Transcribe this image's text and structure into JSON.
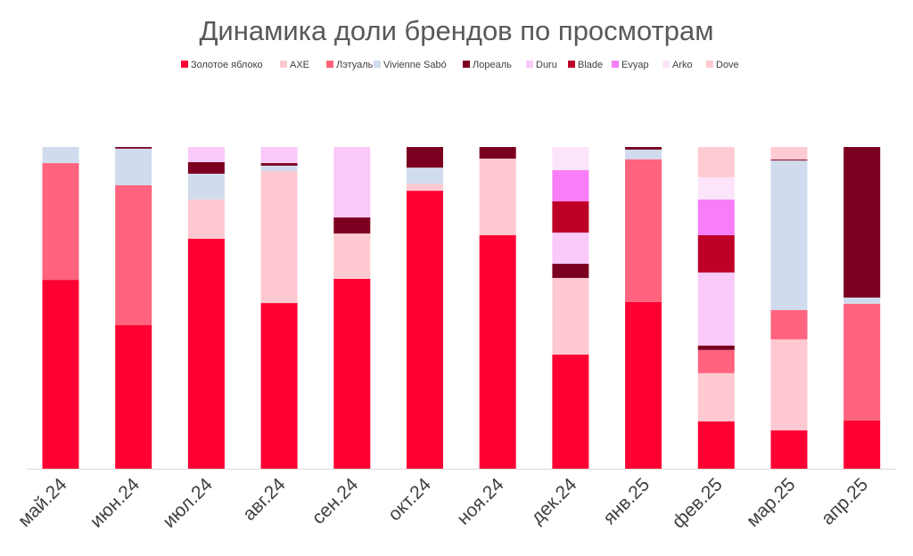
{
  "chart_data": {
    "type": "bar",
    "stacked": "percent",
    "title": "Динамика доли брендов по просмотрам",
    "legend_position": "top",
    "grid": false,
    "ylim": [
      0,
      100
    ],
    "categories": [
      "май.24",
      "июн.24",
      "июл.24",
      "авг.24",
      "сен.24",
      "окт.24",
      "ноя.24",
      "дек.24",
      "янв.25",
      "фев.25",
      "мар.25",
      "апр.25"
    ],
    "series": [
      {
        "name": "Золотое яблоко",
        "color": "#FF0033",
        "values": [
          58.7,
          44.6,
          71.5,
          51.5,
          59.0,
          86.4,
          72.6,
          35.5,
          51.8,
          14.7,
          11.9,
          15.0
        ]
      },
      {
        "name": "AXE",
        "color": "#FFC9D1",
        "values": [
          0,
          0,
          12.2,
          41.0,
          14.1,
          2.2,
          23.8,
          23.8,
          0,
          15.0,
          28.3,
          0
        ]
      },
      {
        "name": "Лэтуаль",
        "color": "#FF637D",
        "values": [
          36.3,
          43.5,
          0,
          0,
          0,
          0,
          0,
          0,
          44.3,
          7.2,
          9.1,
          36.3
        ]
      },
      {
        "name": "Vivienne Sabó",
        "color": "#D0DCEE",
        "values": [
          5.0,
          11.4,
          8.0,
          1.7,
          0,
          5.0,
          0,
          0,
          3.0,
          0,
          46.5,
          1.9
        ]
      },
      {
        "name": "Лореаль",
        "color": "#7B0020",
        "values": [
          0,
          0.5,
          3.6,
          0.8,
          5.0,
          6.4,
          3.6,
          4.4,
          0.8,
          1.4,
          0.3,
          46.8
        ]
      },
      {
        "name": "Duru",
        "color": "#F9C9F9",
        "values": [
          0,
          0,
          4.7,
          5.0,
          21.9,
          0,
          0,
          9.7,
          0,
          22.7,
          0,
          0
        ]
      },
      {
        "name": "Blade",
        "color": "#BE0027",
        "values": [
          0,
          0,
          0,
          0,
          0,
          0,
          0,
          9.7,
          0,
          11.6,
          0,
          0
        ]
      },
      {
        "name": "Evyap",
        "color": "#F77EF7",
        "values": [
          0,
          0,
          0,
          0,
          0,
          0,
          0,
          9.7,
          0,
          11.1,
          0,
          0
        ]
      },
      {
        "name": "Arko",
        "color": "#FCE4FA",
        "values": [
          0,
          0,
          0,
          0,
          0,
          0,
          0,
          7.2,
          0,
          6.9,
          0,
          0
        ]
      },
      {
        "name": "Dove",
        "color": "#FFCBD2",
        "values": [
          0,
          0,
          0,
          0,
          0,
          0,
          0,
          0,
          0,
          9.4,
          3.9,
          0
        ]
      }
    ]
  }
}
